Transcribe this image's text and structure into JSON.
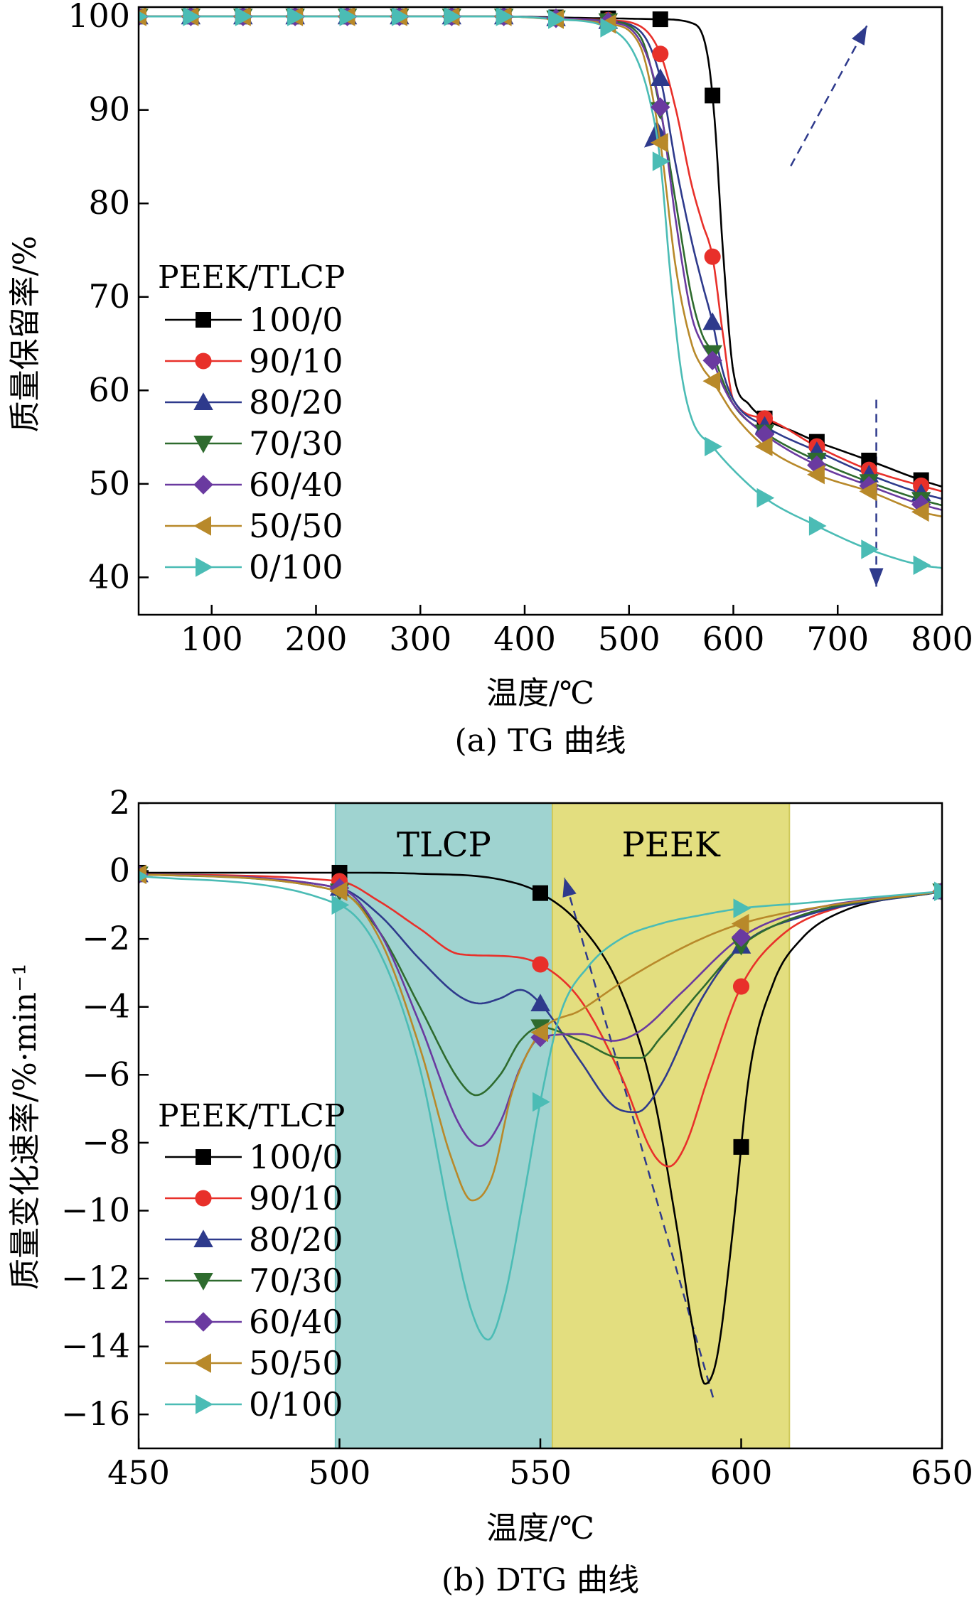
{
  "colors": {
    "100/0": "#000000",
    "90/10": "#e8302a",
    "80/20": "#2e3a8c",
    "70/30": "#2e6b2e",
    "60/40": "#6a3aa0",
    "50/50": "#b8892a",
    "0/100": "#4bbcb5",
    "tlcp_region": "#9fd3d0",
    "peek_region": "#e3de7f",
    "arrow": "#2e3a8c"
  },
  "chart_data": [
    {
      "type": "line",
      "caption": "(a) TG 曲线",
      "xlabel": "温度/℃",
      "ylabel": "质量保留率/%",
      "xlim": [
        30,
        800
      ],
      "ylim": [
        36,
        101
      ],
      "xticks": [
        100,
        200,
        300,
        400,
        500,
        600,
        700,
        800
      ],
      "yticks": [
        40,
        50,
        60,
        70,
        80,
        90,
        100
      ],
      "legend_title": "PEEK/TLCP",
      "series": [
        {
          "name": "100/0",
          "marker": "square",
          "x": [
            30,
            80,
            130,
            180,
            230,
            280,
            330,
            380,
            430,
            480,
            530,
            560,
            575,
            582,
            590,
            600,
            615,
            630,
            660,
            680,
            700,
            730,
            780,
            800
          ],
          "y": [
            100,
            100,
            100,
            100,
            100,
            100,
            100,
            100,
            99.9,
            99.8,
            99.7,
            99.3,
            96,
            89,
            75,
            62,
            58.5,
            57,
            55.5,
            54.5,
            53.7,
            52.5,
            50.4,
            49.7
          ]
        },
        {
          "name": "90/10",
          "marker": "circle",
          "x": [
            30,
            80,
            130,
            180,
            230,
            280,
            330,
            380,
            430,
            480,
            510,
            530,
            545,
            560,
            570,
            580,
            590,
            600,
            630,
            680,
            730,
            780,
            800
          ],
          "y": [
            100,
            100,
            100,
            100,
            100,
            100,
            100,
            100,
            99.8,
            99.6,
            99,
            96,
            90,
            82,
            78,
            74.3,
            66,
            59,
            57,
            54,
            51.5,
            49.8,
            49.2
          ]
        },
        {
          "name": "80/20",
          "marker": "triangle-up",
          "x": [
            30,
            80,
            130,
            180,
            230,
            280,
            330,
            380,
            430,
            480,
            510,
            530,
            545,
            560,
            570,
            580,
            590,
            600,
            630,
            680,
            730,
            780,
            800
          ],
          "y": [
            100,
            100,
            100,
            100,
            100,
            100,
            100,
            100,
            99.8,
            99.5,
            98.5,
            93.4,
            84,
            76,
            71.5,
            67.3,
            62,
            59,
            56.2,
            53.5,
            51,
            49,
            48.4
          ]
        },
        {
          "name": "70/30",
          "marker": "triangle-down",
          "x": [
            30,
            80,
            130,
            180,
            230,
            280,
            330,
            380,
            430,
            480,
            510,
            530,
            545,
            560,
            570,
            580,
            590,
            600,
            630,
            680,
            730,
            780,
            800
          ],
          "y": [
            100,
            100,
            100,
            100,
            100,
            100,
            100,
            100,
            99.8,
            99.5,
            98,
            90,
            80,
            70,
            66,
            64,
            61,
            58.5,
            55.5,
            52.5,
            50.2,
            48.3,
            47.7
          ]
        },
        {
          "name": "60/40",
          "marker": "diamond",
          "x": [
            30,
            80,
            130,
            180,
            230,
            280,
            330,
            380,
            430,
            480,
            510,
            530,
            545,
            560,
            570,
            580,
            590,
            600,
            630,
            680,
            730,
            780,
            800
          ],
          "y": [
            100,
            100,
            100,
            100,
            100,
            100,
            100,
            100,
            99.8,
            99.4,
            97.5,
            90.3,
            78,
            68,
            65,
            63.2,
            60.5,
            58.5,
            55.3,
            52,
            49.8,
            47.8,
            47.2
          ]
        },
        {
          "name": "50/50",
          "marker": "triangle-left",
          "x": [
            30,
            80,
            130,
            180,
            230,
            280,
            330,
            380,
            430,
            480,
            510,
            530,
            545,
            560,
            570,
            580,
            600,
            630,
            680,
            730,
            780,
            800
          ],
          "y": [
            100,
            100,
            100,
            100,
            100,
            100,
            100,
            100,
            99.7,
            99.2,
            97,
            86.5,
            73,
            65,
            62.5,
            61,
            57.5,
            54,
            51,
            49.2,
            47,
            46.5
          ]
        },
        {
          "name": "0/100",
          "marker": "triangle-right",
          "x": [
            30,
            80,
            130,
            180,
            230,
            280,
            330,
            380,
            430,
            480,
            505,
            520,
            530,
            540,
            550,
            560,
            580,
            600,
            630,
            680,
            730,
            780,
            800
          ],
          "y": [
            100,
            100,
            100,
            100,
            100,
            100,
            100,
            100,
            99.7,
            98.8,
            96,
            91,
            84.5,
            72,
            62,
            57,
            54,
            51.5,
            48.5,
            45.5,
            43,
            41.3,
            41
          ]
        }
      ],
      "annotations": {
        "arrow_peek_onset": {
          "from": [
            655,
            84
          ],
          "to": [
            728,
            99
          ]
        },
        "arrow_char_residue": {
          "from": [
            737,
            59
          ],
          "to": [
            737,
            39
          ]
        },
        "arrowhead_left": {
          "at": [
            524,
            87.5
          ]
        }
      }
    },
    {
      "type": "line",
      "caption": "(b) DTG 曲线",
      "xlabel": "温度/℃",
      "ylabel": "质量变化速率/%·min⁻¹",
      "xlim": [
        450,
        650
      ],
      "ylim": [
        -17,
        2
      ],
      "xticks": [
        450,
        500,
        550,
        600,
        650
      ],
      "yticks": [
        2,
        0,
        -2,
        -4,
        -6,
        -8,
        -10,
        -12,
        -14,
        -16
      ],
      "ytick_labels": [
        "2",
        "0",
        "−2",
        "−4",
        "−6",
        "−8",
        "−10",
        "−12",
        "−14",
        "−16"
      ],
      "legend_title": "PEEK/TLCP",
      "regions": [
        {
          "label": "TLCP",
          "x": [
            499,
            553
          ]
        },
        {
          "label": "PEEK",
          "x": [
            553,
            612
          ]
        }
      ],
      "series": [
        {
          "name": "100/0",
          "marker": "square",
          "x": [
            450,
            500,
            520,
            540,
            550,
            560,
            570,
            578,
            584,
            588,
            591,
            594,
            598,
            602,
            608,
            615,
            625,
            650
          ],
          "y": [
            -0.05,
            -0.05,
            -0.08,
            -0.25,
            -0.65,
            -1.6,
            -3.5,
            -6.5,
            -10.5,
            -13.5,
            -15.1,
            -14.3,
            -10.5,
            -6,
            -3.3,
            -2,
            -1.2,
            -0.6
          ],
          "marker_x": [
            450,
            500,
            550,
            600,
            650
          ]
        },
        {
          "name": "90/10",
          "marker": "circle",
          "x": [
            450,
            500,
            510,
            520,
            530,
            540,
            550,
            560,
            570,
            578,
            582,
            586,
            592,
            600,
            610,
            625,
            650
          ],
          "y": [
            -0.1,
            -0.3,
            -0.9,
            -1.7,
            -2.45,
            -2.5,
            -2.75,
            -3.8,
            -6,
            -8.3,
            -8.7,
            -8.1,
            -6,
            -3.4,
            -1.9,
            -1.05,
            -0.6
          ],
          "marker_x": [
            450,
            500,
            550,
            600,
            650
          ]
        },
        {
          "name": "80/20",
          "marker": "triangle-up",
          "x": [
            450,
            500,
            510,
            520,
            530,
            535,
            540,
            545,
            550,
            560,
            568,
            574,
            580,
            590,
            600,
            615,
            650
          ],
          "y": [
            -0.1,
            -0.5,
            -1.3,
            -2.6,
            -3.7,
            -3.9,
            -3.75,
            -3.5,
            -3.9,
            -5.6,
            -6.9,
            -7.1,
            -6.3,
            -3.8,
            -2.2,
            -1.35,
            -0.6
          ],
          "marker_x": [
            450,
            500,
            550,
            600,
            650
          ]
        },
        {
          "name": "70/30",
          "marker": "triangle-down",
          "x": [
            450,
            500,
            510,
            520,
            530,
            534,
            540,
            545,
            550,
            560,
            570,
            575,
            580,
            590,
            600,
            615,
            650
          ],
          "y": [
            -0.1,
            -0.6,
            -1.8,
            -4,
            -6.2,
            -6.6,
            -6,
            -5,
            -4.6,
            -5,
            -5.5,
            -5.5,
            -4.9,
            -3.5,
            -2.2,
            -1.3,
            -0.6
          ],
          "marker_x": [
            450,
            500,
            550,
            600,
            650
          ]
        },
        {
          "name": "60/40",
          "marker": "diamond",
          "x": [
            450,
            500,
            510,
            520,
            530,
            535,
            540,
            545,
            550,
            560,
            568,
            575,
            585,
            600,
            615,
            650
          ],
          "y": [
            -0.1,
            -0.5,
            -1.8,
            -4.5,
            -7.5,
            -8.1,
            -7.4,
            -5.8,
            -4.9,
            -4.8,
            -5,
            -4.7,
            -3.6,
            -1.95,
            -1.2,
            -0.6
          ],
          "marker_x": [
            450,
            500,
            550,
            600,
            650
          ]
        },
        {
          "name": "50/50",
          "marker": "triangle-left",
          "x": [
            450,
            500,
            510,
            520,
            528,
            533,
            538,
            543,
            550,
            560,
            570,
            580,
            590,
            600,
            615,
            650
          ],
          "y": [
            -0.1,
            -0.6,
            -2,
            -5.2,
            -8.5,
            -9.7,
            -9,
            -6.5,
            -4.75,
            -4.1,
            -3.3,
            -2.6,
            -2,
            -1.55,
            -1.15,
            -0.6
          ],
          "marker_x": [
            450,
            500,
            550,
            600,
            650
          ]
        },
        {
          "name": "0/100",
          "marker": "triangle-right",
          "x": [
            450,
            500,
            510,
            520,
            528,
            533,
            537,
            541,
            546,
            550,
            555,
            562,
            570,
            580,
            590,
            600,
            615,
            650
          ],
          "y": [
            -0.15,
            -1,
            -2.4,
            -5.8,
            -10.5,
            -13,
            -13.8,
            -12.6,
            -9.5,
            -6.8,
            -4.2,
            -2.8,
            -2,
            -1.55,
            -1.3,
            -1.1,
            -0.95,
            -0.6
          ],
          "marker_x": [
            450,
            500,
            550,
            600,
            650
          ]
        }
      ],
      "annotations": {
        "arrow_shift": {
          "from": [
            593,
            -15.5
          ],
          "to": [
            556,
            -0.2
          ]
        }
      }
    }
  ]
}
